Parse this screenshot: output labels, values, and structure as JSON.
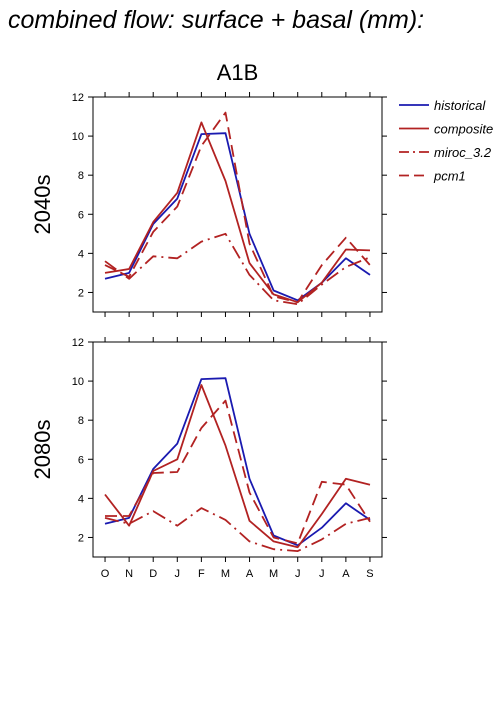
{
  "page": {
    "title": "combined flow: surface + basal (mm):"
  },
  "chart_data": [
    {
      "type": "line",
      "title": "A1B",
      "panel_label": "2040s",
      "categories": [
        "O",
        "N",
        "D",
        "J",
        "F",
        "M",
        "A",
        "M",
        "J",
        "J",
        "A",
        "S"
      ],
      "ylim": [
        1,
        12
      ],
      "yticks": [
        2,
        4,
        6,
        8,
        10,
        12
      ],
      "series": [
        {
          "name": "historical",
          "color": "#1a1ab0",
          "dash": "solid",
          "values": [
            2.7,
            3.0,
            5.5,
            6.8,
            10.1,
            10.15,
            5.0,
            2.1,
            1.6,
            2.5,
            3.75,
            2.9
          ]
        },
        {
          "name": "composite",
          "color": "#b22222",
          "dash": "solid",
          "values": [
            3.0,
            3.2,
            5.6,
            7.1,
            10.7,
            7.7,
            3.5,
            1.9,
            1.5,
            2.5,
            4.2,
            4.15
          ]
        },
        {
          "name": "miroc_3.2",
          "color": "#b22222",
          "dash": "dashdot",
          "values": [
            3.6,
            2.7,
            3.85,
            3.75,
            4.6,
            5.0,
            2.9,
            1.6,
            1.4,
            2.4,
            3.3,
            3.8
          ]
        },
        {
          "name": "pcm1",
          "color": "#b22222",
          "dash": "dash",
          "values": [
            3.4,
            2.8,
            5.1,
            6.4,
            9.5,
            11.2,
            4.5,
            1.8,
            1.5,
            3.4,
            4.8,
            3.4
          ]
        }
      ]
    },
    {
      "type": "line",
      "title": "",
      "panel_label": "2080s",
      "categories": [
        "O",
        "N",
        "D",
        "J",
        "F",
        "M",
        "A",
        "M",
        "J",
        "J",
        "A",
        "S"
      ],
      "ylim": [
        1,
        12
      ],
      "yticks": [
        2,
        4,
        6,
        8,
        10,
        12
      ],
      "series": [
        {
          "name": "historical",
          "color": "#1a1ab0",
          "dash": "solid",
          "values": [
            2.7,
            3.0,
            5.5,
            6.8,
            10.1,
            10.15,
            5.0,
            2.1,
            1.6,
            2.5,
            3.75,
            2.9
          ]
        },
        {
          "name": "composite",
          "color": "#b22222",
          "dash": "solid",
          "values": [
            4.2,
            2.6,
            5.4,
            6.0,
            9.8,
            6.7,
            2.85,
            1.8,
            1.5,
            3.2,
            5.0,
            4.7
          ]
        },
        {
          "name": "miroc_3.2",
          "color": "#b22222",
          "dash": "dashdot",
          "values": [
            3.0,
            2.7,
            3.35,
            2.6,
            3.5,
            2.9,
            1.8,
            1.4,
            1.3,
            1.9,
            2.7,
            3.0
          ]
        },
        {
          "name": "pcm1",
          "color": "#b22222",
          "dash": "dash",
          "values": [
            3.1,
            3.1,
            5.3,
            5.35,
            7.6,
            9.0,
            4.3,
            2.0,
            1.7,
            4.85,
            4.7,
            2.8
          ]
        }
      ]
    }
  ],
  "legend": [
    {
      "label": "historical",
      "color": "#1a1ab0",
      "dash": "solid"
    },
    {
      "label": "composite",
      "color": "#b22222",
      "dash": "solid"
    },
    {
      "label": "miroc_3.2",
      "color": "#b22222",
      "dash": "dashdot"
    },
    {
      "label": "pcm1",
      "color": "#b22222",
      "dash": "dash"
    }
  ]
}
